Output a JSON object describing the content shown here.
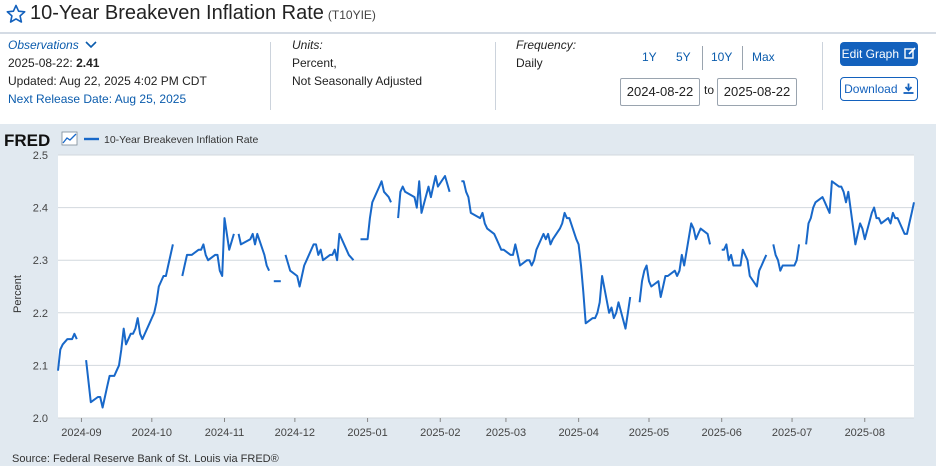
{
  "header": {
    "title": "10-Year Breakeven Inflation Rate",
    "series_id": "(T10YIE)"
  },
  "observations": {
    "label": "Observations",
    "date": "2025-08-22:",
    "value": "2.41",
    "updated": "Updated: Aug 22, 2025 4:02 PM CDT",
    "next_release": "Next Release Date: Aug 25, 2025"
  },
  "units": {
    "label": "Units:",
    "line1": "Percent,",
    "line2": "Not Seasonally Adjusted"
  },
  "frequency": {
    "label": "Frequency:",
    "value": "Daily"
  },
  "range": {
    "buttons": [
      "1Y",
      "5Y",
      "10Y",
      "Max"
    ],
    "start": "2024-08-22",
    "to": "to",
    "end": "2025-08-22"
  },
  "actions": {
    "edit": "Edit Graph",
    "download": "Download"
  },
  "logo": "FRED",
  "source": "Source: Federal Reserve Bank of St. Louis via FRED®",
  "colors": {
    "line": "#1868c9",
    "accent": "#1361bd",
    "link": "#0b5cad",
    "chart_bg": "#e1e9f0"
  },
  "chart_data": {
    "type": "line",
    "legend": "10-Year Breakeven Inflation Rate",
    "ylabel": "Percent",
    "xlabel": "",
    "ylim": [
      2.0,
      2.5
    ],
    "yticks": [
      "2.0",
      "2.1",
      "2.2",
      "2.3",
      "2.4",
      "2.5"
    ],
    "xlim": [
      "2024-08-22",
      "2025-08-22"
    ],
    "xticks": [
      {
        "date": "2024-09-01",
        "label": "2024-09"
      },
      {
        "date": "2024-10-01",
        "label": "2024-10"
      },
      {
        "date": "2024-11-01",
        "label": "2024-11"
      },
      {
        "date": "2024-12-01",
        "label": "2024-12"
      },
      {
        "date": "2025-01-01",
        "label": "2025-01"
      },
      {
        "date": "2025-02-01",
        "label": "2025-02"
      },
      {
        "date": "2025-03-01",
        "label": "2025-03"
      },
      {
        "date": "2025-04-01",
        "label": "2025-04"
      },
      {
        "date": "2025-05-01",
        "label": "2025-05"
      },
      {
        "date": "2025-06-01",
        "label": "2025-06"
      },
      {
        "date": "2025-07-01",
        "label": "2025-07"
      },
      {
        "date": "2025-08-01",
        "label": "2025-08"
      }
    ],
    "grid": true,
    "segments": [
      [
        [
          "2024-08-22",
          2.09
        ],
        [
          "2024-08-23",
          2.13
        ],
        [
          "2024-08-24",
          2.14
        ],
        [
          "2024-08-26",
          2.15
        ],
        [
          "2024-08-28",
          2.15
        ],
        [
          "2024-08-29",
          2.16
        ],
        [
          "2024-08-30",
          2.15
        ]
      ],
      [
        [
          "2024-09-03",
          2.11
        ],
        [
          "2024-09-05",
          2.03
        ],
        [
          "2024-09-08",
          2.04
        ],
        [
          "2024-09-09",
          2.04
        ],
        [
          "2024-09-10",
          2.02
        ],
        [
          "2024-09-11",
          2.04
        ],
        [
          "2024-09-12",
          2.06
        ],
        [
          "2024-09-13",
          2.08
        ],
        [
          "2024-09-15",
          2.08
        ],
        [
          "2024-09-16",
          2.09
        ],
        [
          "2024-09-17",
          2.1
        ],
        [
          "2024-09-18",
          2.13
        ],
        [
          "2024-09-19",
          2.17
        ],
        [
          "2024-09-20",
          2.14
        ],
        [
          "2024-09-22",
          2.16
        ],
        [
          "2024-09-23",
          2.16
        ],
        [
          "2024-09-24",
          2.17
        ],
        [
          "2024-09-25",
          2.19
        ],
        [
          "2024-09-26",
          2.16
        ],
        [
          "2024-09-27",
          2.15
        ],
        [
          "2024-09-30",
          2.18
        ],
        [
          "2024-10-01",
          2.19
        ],
        [
          "2024-10-02",
          2.2
        ],
        [
          "2024-10-03",
          2.22
        ],
        [
          "2024-10-04",
          2.25
        ],
        [
          "2024-10-06",
          2.27
        ],
        [
          "2024-10-07",
          2.27
        ],
        [
          "2024-10-08",
          2.29
        ],
        [
          "2024-10-10",
          2.33
        ]
      ],
      [
        [
          "2024-10-14",
          2.27
        ],
        [
          "2024-10-15",
          2.29
        ],
        [
          "2024-10-16",
          2.31
        ],
        [
          "2024-10-17",
          2.31
        ],
        [
          "2024-10-18",
          2.31
        ],
        [
          "2024-10-21",
          2.32
        ],
        [
          "2024-10-22",
          2.32
        ],
        [
          "2024-10-23",
          2.33
        ],
        [
          "2024-10-24",
          2.31
        ],
        [
          "2024-10-25",
          2.3
        ],
        [
          "2024-10-28",
          2.31
        ],
        [
          "2024-10-29",
          2.31
        ],
        [
          "2024-10-30",
          2.28
        ],
        [
          "2024-10-31",
          2.27
        ],
        [
          "2024-11-01",
          2.38
        ],
        [
          "2024-11-03",
          2.32
        ],
        [
          "2024-11-05",
          2.35
        ]
      ],
      [
        [
          "2024-11-07",
          2.35
        ],
        [
          "2024-11-08",
          2.33
        ],
        [
          "2024-11-12",
          2.34
        ],
        [
          "2024-11-13",
          2.35
        ],
        [
          "2024-11-14",
          2.33
        ],
        [
          "2024-11-15",
          2.35
        ],
        [
          "2024-11-18",
          2.31
        ],
        [
          "2024-11-19",
          2.29
        ],
        [
          "2024-11-20",
          2.28
        ]
      ],
      [
        [
          "2024-11-22",
          2.26
        ],
        [
          "2024-11-25",
          2.26
        ]
      ],
      [
        [
          "2024-11-27",
          2.31
        ],
        [
          "2024-11-29",
          2.28
        ],
        [
          "2024-12-02",
          2.27
        ],
        [
          "2024-12-03",
          2.25
        ],
        [
          "2024-12-04",
          2.27
        ],
        [
          "2024-12-05",
          2.29
        ],
        [
          "2024-12-06",
          2.3
        ],
        [
          "2024-12-09",
          2.33
        ],
        [
          "2024-12-10",
          2.33
        ],
        [
          "2024-12-11",
          2.31
        ],
        [
          "2024-12-12",
          2.32
        ],
        [
          "2024-12-13",
          2.3
        ],
        [
          "2024-12-16",
          2.31
        ],
        [
          "2024-12-17",
          2.31
        ],
        [
          "2024-12-18",
          2.32
        ],
        [
          "2024-12-19",
          2.3
        ],
        [
          "2024-12-20",
          2.35
        ],
        [
          "2024-12-23",
          2.32
        ],
        [
          "2024-12-24",
          2.31
        ],
        [
          "2024-12-26",
          2.3
        ]
      ],
      [
        [
          "2024-12-29",
          2.34
        ],
        [
          "2024-12-30",
          2.34
        ],
        [
          "2024-12-31",
          2.34
        ],
        [
          "2025-01-01",
          2.34
        ],
        [
          "2025-01-02",
          2.38
        ],
        [
          "2025-01-03",
          2.41
        ],
        [
          "2025-01-06",
          2.44
        ],
        [
          "2025-01-07",
          2.45
        ],
        [
          "2025-01-08",
          2.43
        ],
        [
          "2025-01-10",
          2.42
        ],
        [
          "2025-01-11",
          2.41
        ]
      ],
      [
        [
          "2025-01-14",
          2.38
        ],
        [
          "2025-01-15",
          2.43
        ],
        [
          "2025-01-16",
          2.44
        ],
        [
          "2025-01-17",
          2.43
        ],
        [
          "2025-01-21",
          2.42
        ],
        [
          "2025-01-22",
          2.4
        ],
        [
          "2025-01-23",
          2.45
        ],
        [
          "2025-01-24",
          2.39
        ],
        [
          "2025-01-27",
          2.44
        ],
        [
          "2025-01-28",
          2.42
        ],
        [
          "2025-01-29",
          2.44
        ],
        [
          "2025-01-30",
          2.46
        ],
        [
          "2025-01-31",
          2.44
        ],
        [
          "2025-02-03",
          2.46
        ],
        [
          "2025-02-05",
          2.43
        ]
      ],
      [
        [
          "2025-02-10",
          2.45
        ],
        [
          "2025-02-11",
          2.45
        ],
        [
          "2025-02-12",
          2.43
        ],
        [
          "2025-02-13",
          2.42
        ],
        [
          "2025-02-14",
          2.39
        ],
        [
          "2025-02-18",
          2.38
        ],
        [
          "2025-02-19",
          2.39
        ],
        [
          "2025-02-20",
          2.37
        ],
        [
          "2025-02-21",
          2.36
        ],
        [
          "2025-02-24",
          2.35
        ],
        [
          "2025-02-25",
          2.34
        ],
        [
          "2025-02-26",
          2.33
        ],
        [
          "2025-02-27",
          2.32
        ],
        [
          "2025-02-28",
          2.32
        ],
        [
          "2025-03-03",
          2.31
        ],
        [
          "2025-03-04",
          2.31
        ],
        [
          "2025-03-05",
          2.33
        ],
        [
          "2025-03-06",
          2.31
        ],
        [
          "2025-03-07",
          2.29
        ],
        [
          "2025-03-10",
          2.3
        ],
        [
          "2025-03-11",
          2.3
        ],
        [
          "2025-03-12",
          2.29
        ],
        [
          "2025-03-13",
          2.3
        ],
        [
          "2025-03-14",
          2.32
        ],
        [
          "2025-03-17",
          2.35
        ],
        [
          "2025-03-18",
          2.34
        ],
        [
          "2025-03-19",
          2.35
        ],
        [
          "2025-03-20",
          2.33
        ],
        [
          "2025-03-21",
          2.34
        ],
        [
          "2025-03-24",
          2.36
        ],
        [
          "2025-03-25",
          2.37
        ],
        [
          "2025-03-26",
          2.39
        ],
        [
          "2025-03-27",
          2.38
        ],
        [
          "2025-03-28",
          2.38
        ],
        [
          "2025-03-31",
          2.34
        ],
        [
          "2025-04-01",
          2.33
        ],
        [
          "2025-04-02",
          2.29
        ],
        [
          "2025-04-03",
          2.24
        ],
        [
          "2025-04-04",
          2.18
        ],
        [
          "2025-04-07",
          2.19
        ],
        [
          "2025-04-08",
          2.19
        ],
        [
          "2025-04-09",
          2.2
        ],
        [
          "2025-04-10",
          2.22
        ],
        [
          "2025-04-11",
          2.27
        ],
        [
          "2025-04-14",
          2.2
        ],
        [
          "2025-04-15",
          2.21
        ],
        [
          "2025-04-16",
          2.19
        ],
        [
          "2025-04-17",
          2.2
        ],
        [
          "2025-04-18",
          2.22
        ],
        [
          "2025-04-21",
          2.17
        ],
        [
          "2025-04-22",
          2.2
        ],
        [
          "2025-04-23",
          2.23
        ]
      ],
      [
        [
          "2025-04-27",
          2.22
        ],
        [
          "2025-04-28",
          2.26
        ],
        [
          "2025-04-29",
          2.28
        ],
        [
          "2025-04-30",
          2.29
        ],
        [
          "2025-05-01",
          2.26
        ],
        [
          "2025-05-02",
          2.25
        ],
        [
          "2025-05-05",
          2.26
        ],
        [
          "2025-05-06",
          2.23
        ],
        [
          "2025-05-07",
          2.25
        ],
        [
          "2025-05-08",
          2.27
        ],
        [
          "2025-05-09",
          2.27
        ],
        [
          "2025-05-12",
          2.28
        ],
        [
          "2025-05-13",
          2.27
        ],
        [
          "2025-05-14",
          2.28
        ],
        [
          "2025-05-15",
          2.31
        ],
        [
          "2025-05-16",
          2.29
        ],
        [
          "2025-05-19",
          2.37
        ],
        [
          "2025-05-20",
          2.36
        ],
        [
          "2025-05-21",
          2.34
        ],
        [
          "2025-05-22",
          2.35
        ],
        [
          "2025-05-23",
          2.36
        ],
        [
          "2025-05-26",
          2.35
        ],
        [
          "2025-05-27",
          2.33
        ]
      ],
      [
        [
          "2025-06-01",
          2.32
        ],
        [
          "2025-06-02",
          2.32
        ],
        [
          "2025-06-03",
          2.33
        ],
        [
          "2025-06-04",
          2.3
        ],
        [
          "2025-06-05",
          2.31
        ],
        [
          "2025-06-06",
          2.29
        ],
        [
          "2025-06-09",
          2.29
        ],
        [
          "2025-06-10",
          2.32
        ],
        [
          "2025-06-11",
          2.31
        ],
        [
          "2025-06-12",
          2.3
        ],
        [
          "2025-06-13",
          2.27
        ],
        [
          "2025-06-16",
          2.25
        ],
        [
          "2025-06-17",
          2.28
        ],
        [
          "2025-06-18",
          2.29
        ],
        [
          "2025-06-19",
          2.3
        ],
        [
          "2025-06-20",
          2.31
        ]
      ],
      [
        [
          "2025-06-23",
          2.33
        ],
        [
          "2025-06-24",
          2.31
        ],
        [
          "2025-06-25",
          2.3
        ],
        [
          "2025-06-26",
          2.28
        ],
        [
          "2025-06-27",
          2.29
        ],
        [
          "2025-06-30",
          2.29
        ],
        [
          "2025-07-01",
          2.29
        ],
        [
          "2025-07-02",
          2.29
        ],
        [
          "2025-07-03",
          2.3
        ],
        [
          "2025-07-04",
          2.33
        ]
      ],
      [
        [
          "2025-07-07",
          2.33
        ],
        [
          "2025-07-08",
          2.37
        ],
        [
          "2025-07-09",
          2.38
        ],
        [
          "2025-07-10",
          2.4
        ],
        [
          "2025-07-11",
          2.41
        ],
        [
          "2025-07-14",
          2.42
        ],
        [
          "2025-07-15",
          2.41
        ],
        [
          "2025-07-16",
          2.4
        ],
        [
          "2025-07-17",
          2.39
        ],
        [
          "2025-07-18",
          2.45
        ],
        [
          "2025-07-21",
          2.44
        ],
        [
          "2025-07-22",
          2.44
        ],
        [
          "2025-07-23",
          2.43
        ],
        [
          "2025-07-24",
          2.41
        ],
        [
          "2025-07-25",
          2.43
        ],
        [
          "2025-07-28",
          2.33
        ],
        [
          "2025-07-29",
          2.35
        ],
        [
          "2025-07-30",
          2.37
        ],
        [
          "2025-07-31",
          2.36
        ],
        [
          "2025-08-01",
          2.34
        ],
        [
          "2025-08-04",
          2.39
        ],
        [
          "2025-08-05",
          2.4
        ],
        [
          "2025-08-06",
          2.38
        ],
        [
          "2025-08-07",
          2.38
        ],
        [
          "2025-08-08",
          2.37
        ],
        [
          "2025-08-11",
          2.38
        ],
        [
          "2025-08-12",
          2.37
        ],
        [
          "2025-08-13",
          2.39
        ],
        [
          "2025-08-14",
          2.38
        ],
        [
          "2025-08-15",
          2.38
        ],
        [
          "2025-08-18",
          2.35
        ],
        [
          "2025-08-19",
          2.35
        ],
        [
          "2025-08-20",
          2.37
        ],
        [
          "2025-08-21",
          2.39
        ],
        [
          "2025-08-22",
          2.41
        ]
      ]
    ]
  }
}
